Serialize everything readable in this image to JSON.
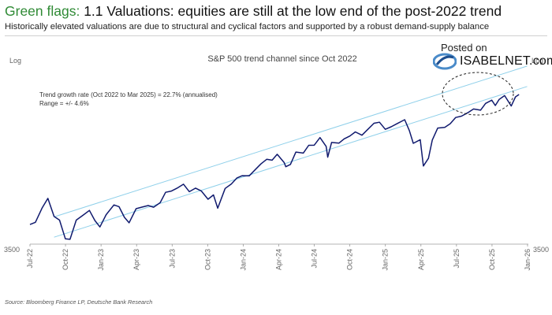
{
  "header": {
    "title_flag": "Green flags:",
    "title_rest": " 1.1 Valuations: equities are still at the low end of the post-2022 trend",
    "subtitle": "Historically elevated valuations are due to structural and cyclical factors and supported by a robust demand-supply balance"
  },
  "watermark": {
    "posted_on": "Posted on",
    "site": "ISABELNET.com"
  },
  "source": "Source: Bloomberg Finance LP, Deutsche Bank Research",
  "colors": {
    "title_flag": "#2f8a35",
    "series": "#101a6e",
    "channel": "#8fd0ea"
  },
  "chart_data": {
    "type": "line",
    "title": "S&P 500 trend channel since Oct 2022",
    "y_axis_label_left": "Log",
    "y_axis_label_right": "Log",
    "y_scale": "log",
    "y_tick_left": "3500",
    "y_tick_right": "3500",
    "x_tick_labels": [
      "Jul-22",
      "Oct-22",
      "Jan-23",
      "Apr-23",
      "Jul-23",
      "Oct-23",
      "Jan-24",
      "Apr-24",
      "Jul-24",
      "Oct-24",
      "Jan-25",
      "Apr-25",
      "Jul-25",
      "Oct-25",
      "Jan-26"
    ],
    "annotation_lines": [
      "Trend growth rate (Oct 2022 to Mar 2025) = 22.7% (annualised)",
      "Range = +/- 4.6%"
    ],
    "trend_growth_rate_pct": 22.7,
    "range_pct": 4.6,
    "grid": false,
    "series": [
      {
        "values": [
          [
            "2022-07-01",
            3825
          ],
          [
            "2022-07-15",
            3863
          ],
          [
            "2022-08-01",
            4118
          ],
          [
            "2022-08-16",
            4305
          ],
          [
            "2022-09-01",
            3966
          ],
          [
            "2022-09-15",
            3901
          ],
          [
            "2022-09-30",
            3585
          ],
          [
            "2022-10-12",
            3577
          ],
          [
            "2022-10-28",
            3901
          ],
          [
            "2022-11-15",
            3991
          ],
          [
            "2022-12-01",
            4076
          ],
          [
            "2022-12-15",
            3895
          ],
          [
            "2022-12-28",
            3783
          ],
          [
            "2023-01-13",
            3999
          ],
          [
            "2023-02-02",
            4179
          ],
          [
            "2023-02-15",
            4147
          ],
          [
            "2023-03-01",
            3951
          ],
          [
            "2023-03-13",
            3855
          ],
          [
            "2023-03-31",
            4109
          ],
          [
            "2023-04-14",
            4137
          ],
          [
            "2023-05-01",
            4167
          ],
          [
            "2023-05-15",
            4136
          ],
          [
            "2023-06-01",
            4221
          ],
          [
            "2023-06-15",
            4425
          ],
          [
            "2023-06-30",
            4450
          ],
          [
            "2023-07-14",
            4505
          ],
          [
            "2023-07-31",
            4589
          ],
          [
            "2023-08-15",
            4437
          ],
          [
            "2023-08-31",
            4508
          ],
          [
            "2023-09-15",
            4450
          ],
          [
            "2023-10-02",
            4288
          ],
          [
            "2023-10-16",
            4373
          ],
          [
            "2023-10-27",
            4117
          ],
          [
            "2023-11-15",
            4502
          ],
          [
            "2023-12-01",
            4594
          ],
          [
            "2023-12-15",
            4719
          ],
          [
            "2023-12-29",
            4770
          ],
          [
            "2024-01-16",
            4766
          ],
          [
            "2024-02-01",
            4906
          ],
          [
            "2024-02-15",
            5029
          ],
          [
            "2024-03-01",
            5137
          ],
          [
            "2024-03-15",
            5117
          ],
          [
            "2024-03-28",
            5254
          ],
          [
            "2024-04-15",
            5061
          ],
          [
            "2024-04-19",
            4967
          ],
          [
            "2024-05-01",
            5018
          ],
          [
            "2024-05-15",
            5308
          ],
          [
            "2024-06-03",
            5283
          ],
          [
            "2024-06-17",
            5473
          ],
          [
            "2024-07-01",
            5475
          ],
          [
            "2024-07-16",
            5667
          ],
          [
            "2024-08-01",
            5446
          ],
          [
            "2024-08-05",
            5186
          ],
          [
            "2024-08-15",
            5543
          ],
          [
            "2024-09-03",
            5528
          ],
          [
            "2024-09-16",
            5633
          ],
          [
            "2024-10-01",
            5708
          ],
          [
            "2024-10-15",
            5815
          ],
          [
            "2024-11-01",
            5728
          ],
          [
            "2024-11-15",
            5870
          ],
          [
            "2024-12-02",
            6047
          ],
          [
            "2024-12-16",
            6074
          ],
          [
            "2024-12-31",
            5882
          ],
          [
            "2025-01-15",
            5950
          ],
          [
            "2025-01-31",
            6040
          ],
          [
            "2025-02-19",
            6144
          ],
          [
            "2025-03-03",
            5849
          ],
          [
            "2025-03-13",
            5521
          ],
          [
            "2025-03-31",
            5612
          ],
          [
            "2025-04-08",
            4983
          ],
          [
            "2025-04-21",
            5158
          ],
          [
            "2025-05-01",
            5604
          ],
          [
            "2025-05-15",
            5916
          ],
          [
            "2025-06-02",
            5936
          ],
          [
            "2025-06-16",
            6033
          ],
          [
            "2025-06-30",
            6205
          ],
          [
            "2025-07-15",
            6244
          ],
          [
            "2025-07-31",
            6339
          ],
          [
            "2025-08-15",
            6449
          ],
          [
            "2025-09-02",
            6415
          ],
          [
            "2025-09-15",
            6615
          ],
          [
            "2025-10-01",
            6711
          ],
          [
            "2025-10-10",
            6552
          ],
          [
            "2025-10-20",
            6735
          ],
          [
            "2025-11-03",
            6851
          ],
          [
            "2025-11-20",
            6538
          ],
          [
            "2025-12-01",
            6812
          ],
          [
            "2025-12-10",
            6886
          ]
        ]
      }
    ]
  }
}
